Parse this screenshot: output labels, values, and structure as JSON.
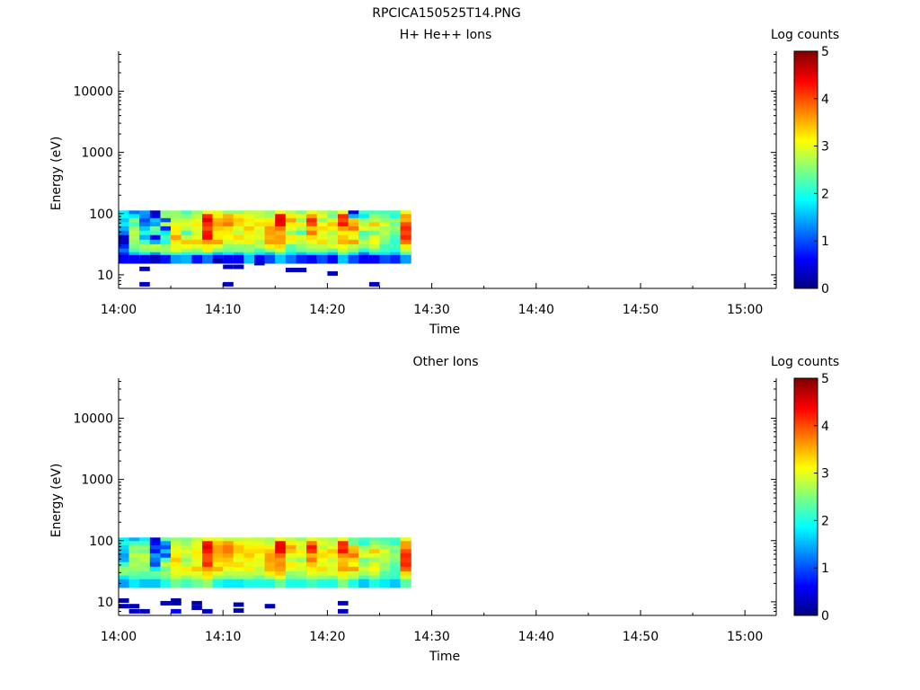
{
  "figure_title": "RPCICA150525T14.PNG",
  "chart_data": [
    {
      "type": "heatmap",
      "title": "H+ He++ Ions",
      "xlabel": "Time",
      "ylabel": "Energy (eV)",
      "y_scale": "log",
      "xlim": [
        "14:00",
        "15:03"
      ],
      "ylim": [
        6,
        45000
      ],
      "x_ticks": [
        "14:00",
        "14:10",
        "14:20",
        "14:30",
        "14:40",
        "14:50",
        "15:00"
      ],
      "y_ticks": [
        "10",
        "100",
        "1000",
        "10000"
      ],
      "colorbar": {
        "label": "Log counts",
        "range": [
          0,
          5
        ],
        "ticks": [
          "0",
          "1",
          "2",
          "3",
          "4",
          "5"
        ],
        "colormap": "jet"
      },
      "time_bins": [
        "14:00",
        "14:01",
        "14:02",
        "14:03",
        "14:04",
        "14:05",
        "14:06",
        "14:07",
        "14:08",
        "14:09",
        "14:10",
        "14:11",
        "14:12",
        "14:13",
        "14:14",
        "14:15",
        "14:16",
        "14:17",
        "14:18",
        "14:19",
        "14:20",
        "14:21",
        "14:22",
        "14:23",
        "14:24",
        "14:25",
        "14:26",
        "14:27"
      ],
      "energy_bins": [
        96,
        84,
        72,
        62,
        53,
        45,
        38,
        32,
        27,
        23,
        20,
        18
      ],
      "log_counts": [
        [
          1.8,
          1.9,
          1.6,
          1.8,
          1.5,
          1.2,
          0.4,
          0.3,
          0.8,
          1.2,
          0.8,
          0.6
        ],
        [
          1.2,
          1.8,
          2.5,
          2.2,
          2.6,
          2.8,
          2.7,
          2.6,
          2.5,
          2.2,
          1.6,
          0.6
        ],
        [
          1.4,
          1.3,
          1.0,
          1.2,
          1.6,
          2.0,
          1.5,
          2.2,
          2.7,
          2.5,
          1.8,
          0.5
        ],
        [
          0.3,
          0.5,
          1.6,
          1.4,
          2.4,
          2.2,
          0.5,
          1.5,
          2.8,
          2.6,
          1.4,
          0.3
        ],
        [
          2.5,
          2.6,
          1.0,
          2.8,
          0.8,
          1.8,
          2.2,
          2.0,
          2.6,
          2.6,
          2.2,
          0.7
        ],
        [
          2.6,
          2.6,
          2.8,
          3.0,
          3.2,
          3.2,
          3.6,
          3.2,
          3.0,
          3.0,
          2.2,
          1.4
        ],
        [
          2.2,
          2.5,
          2.8,
          3.0,
          2.8,
          2.2,
          2.8,
          3.4,
          3.1,
          2.7,
          2.0,
          1.5
        ],
        [
          2.6,
          2.8,
          3.0,
          3.2,
          3.0,
          2.9,
          3.0,
          3.4,
          3.0,
          2.6,
          2.1,
          0.7
        ],
        [
          3.0,
          4.2,
          4.5,
          4.2,
          4.0,
          4.3,
          4.4,
          3.6,
          3.2,
          3.2,
          2.0,
          1.2
        ],
        [
          3.0,
          3.2,
          3.5,
          3.6,
          3.4,
          3.2,
          3.2,
          3.6,
          3.0,
          2.5,
          1.6,
          0.7
        ],
        [
          2.6,
          3.5,
          3.6,
          3.8,
          3.3,
          3.2,
          3.1,
          2.9,
          2.6,
          2.4,
          1.8,
          0.6
        ],
        [
          2.6,
          3.2,
          3.4,
          3.3,
          3.0,
          2.8,
          3.3,
          3.0,
          2.6,
          2.5,
          1.6,
          0.6
        ],
        [
          2.8,
          3.0,
          3.2,
          3.0,
          3.4,
          3.2,
          3.0,
          3.2,
          2.6,
          2.6,
          2.0,
          1.6
        ],
        [
          2.8,
          2.8,
          3.1,
          3.3,
          3.0,
          2.9,
          3.0,
          2.7,
          2.8,
          2.2,
          1.8,
          0.6
        ],
        [
          2.6,
          2.7,
          3.2,
          3.3,
          3.6,
          3.6,
          3.5,
          3.6,
          3.2,
          2.6,
          1.6,
          1.0
        ],
        [
          3.0,
          4.4,
          4.5,
          4.4,
          3.8,
          3.5,
          3.6,
          3.6,
          3.3,
          2.9,
          2.2,
          1.6
        ],
        [
          2.8,
          3.2,
          3.6,
          3.2,
          3.0,
          2.6,
          3.2,
          3.0,
          2.3,
          2.2,
          1.8,
          1.2
        ],
        [
          2.5,
          3.0,
          2.6,
          3.2,
          2.8,
          2.2,
          3.0,
          2.8,
          2.6,
          2.4,
          1.6,
          0.8
        ],
        [
          3.0,
          3.6,
          4.2,
          4.0,
          3.4,
          3.8,
          3.3,
          3.0,
          2.8,
          2.5,
          1.8,
          0.6
        ],
        [
          2.8,
          3.0,
          2.6,
          3.1,
          3.3,
          3.0,
          3.0,
          3.3,
          2.8,
          2.6,
          1.8,
          1.0
        ],
        [
          2.6,
          2.4,
          3.0,
          3.4,
          3.2,
          2.7,
          2.9,
          2.8,
          3.0,
          2.3,
          1.6,
          0.6
        ],
        [
          3.0,
          4.2,
          4.0,
          4.3,
          3.6,
          3.2,
          3.4,
          3.5,
          3.1,
          2.8,
          2.4,
          1.6
        ],
        [
          0.4,
          1.5,
          3.4,
          3.5,
          3.8,
          3.2,
          3.0,
          3.6,
          2.8,
          2.6,
          1.8,
          1.0
        ],
        [
          2.2,
          1.8,
          2.6,
          2.8,
          3.0,
          2.2,
          2.4,
          2.8,
          2.6,
          2.0,
          1.2,
          0.6
        ],
        [
          2.2,
          2.6,
          2.8,
          3.4,
          2.9,
          2.4,
          3.0,
          3.1,
          2.9,
          2.4,
          1.8,
          0.6
        ],
        [
          2.2,
          2.4,
          2.6,
          3.0,
          2.7,
          2.8,
          2.6,
          2.5,
          2.2,
          2.2,
          1.8,
          1.0
        ],
        [
          2.2,
          2.0,
          2.6,
          2.4,
          2.6,
          2.4,
          2.2,
          2.1,
          2.2,
          2.0,
          1.6,
          0.8
        ],
        [
          3.0,
          3.6,
          3.5,
          4.0,
          4.2,
          4.0,
          4.2,
          3.8,
          3.2,
          2.8,
          2.3,
          1.4
        ]
      ],
      "sparse_points": [
        {
          "time": "14:02",
          "energy": 12.5,
          "log_count": 0.3
        },
        {
          "time": "14:02",
          "energy": 7,
          "log_count": 0.3
        },
        {
          "time": "14:09",
          "energy": 17,
          "log_count": 0.2
        },
        {
          "time": "14:10",
          "energy": 13.5,
          "log_count": 0.3
        },
        {
          "time": "14:11",
          "energy": 13.5,
          "log_count": 0.3
        },
        {
          "time": "14:10",
          "energy": 7,
          "log_count": 0.3
        },
        {
          "time": "14:13",
          "energy": 15.5,
          "log_count": 0.3
        },
        {
          "time": "14:16",
          "energy": 12,
          "log_count": 0.3
        },
        {
          "time": "14:17",
          "energy": 12,
          "log_count": 0.3
        },
        {
          "time": "14:20",
          "energy": 10.5,
          "log_count": 0.3
        },
        {
          "time": "14:24",
          "energy": 7,
          "log_count": 0.3
        }
      ]
    },
    {
      "type": "heatmap",
      "title": "Other Ions",
      "xlabel": "Time",
      "ylabel": "Energy (eV)",
      "y_scale": "log",
      "xlim": [
        "14:00",
        "15:03"
      ],
      "ylim": [
        6,
        45000
      ],
      "x_ticks": [
        "14:00",
        "14:10",
        "14:20",
        "14:30",
        "14:40",
        "14:50",
        "15:00"
      ],
      "y_ticks": [
        "10",
        "100",
        "1000",
        "10000"
      ],
      "colorbar": {
        "label": "Log counts",
        "range": [
          0,
          5
        ],
        "ticks": [
          "0",
          "1",
          "2",
          "3",
          "4",
          "5"
        ],
        "colormap": "jet"
      },
      "time_bins": [
        "14:00",
        "14:01",
        "14:02",
        "14:03",
        "14:04",
        "14:05",
        "14:06",
        "14:07",
        "14:08",
        "14:09",
        "14:10",
        "14:11",
        "14:12",
        "14:13",
        "14:14",
        "14:15",
        "14:16",
        "14:17",
        "14:18",
        "14:19",
        "14:20",
        "14:21",
        "14:22",
        "14:23",
        "14:24",
        "14:25",
        "14:26",
        "14:27"
      ],
      "energy_bins": [
        96,
        84,
        72,
        62,
        53,
        45,
        38,
        32,
        27,
        23,
        20
      ],
      "log_counts": [
        [
          1.8,
          2.0,
          1.7,
          1.6,
          1.4,
          1.5,
          2.2,
          2.6,
          2.5,
          1.8,
          1.4
        ],
        [
          1.5,
          2.2,
          2.6,
          2.5,
          2.8,
          2.6,
          2.7,
          2.6,
          2.4,
          2.2,
          1.8
        ],
        [
          1.8,
          2.2,
          2.6,
          2.4,
          2.8,
          2.8,
          2.6,
          2.6,
          2.3,
          2.2,
          1.6
        ],
        [
          0.4,
          0.6,
          1.0,
          0.7,
          1.4,
          1.2,
          1.0,
          1.8,
          2.4,
          2.2,
          1.6
        ],
        [
          2.4,
          1.4,
          1.0,
          1.6,
          1.0,
          2.2,
          2.8,
          2.4,
          2.6,
          2.4,
          2.0
        ],
        [
          2.6,
          2.8,
          3.0,
          3.0,
          3.2,
          3.4,
          3.2,
          3.0,
          3.0,
          2.8,
          2.4
        ],
        [
          2.5,
          2.6,
          2.8,
          3.0,
          2.8,
          2.6,
          2.8,
          3.2,
          3.0,
          2.6,
          2.2
        ],
        [
          2.8,
          3.0,
          3.0,
          3.2,
          3.2,
          3.0,
          3.0,
          3.4,
          3.0,
          2.8,
          2.4
        ],
        [
          3.0,
          4.3,
          4.5,
          4.3,
          4.0,
          4.0,
          4.2,
          3.6,
          3.3,
          3.2,
          2.6
        ],
        [
          3.0,
          3.4,
          3.6,
          3.6,
          3.5,
          3.4,
          3.2,
          3.5,
          3.0,
          2.6,
          2.0
        ],
        [
          2.8,
          3.6,
          3.8,
          3.8,
          3.6,
          3.4,
          3.3,
          3.0,
          2.8,
          2.5,
          1.8
        ],
        [
          2.8,
          3.2,
          3.4,
          3.4,
          3.2,
          3.0,
          3.3,
          3.1,
          2.8,
          2.6,
          1.8
        ],
        [
          2.9,
          3.0,
          3.2,
          3.3,
          3.4,
          3.2,
          3.0,
          3.2,
          2.8,
          2.6,
          2.0
        ],
        [
          2.8,
          3.0,
          3.2,
          3.3,
          3.1,
          3.0,
          3.0,
          2.8,
          2.8,
          2.4,
          2.0
        ],
        [
          2.7,
          2.8,
          3.2,
          3.4,
          3.6,
          3.6,
          3.5,
          3.5,
          3.2,
          2.7,
          2.0
        ],
        [
          3.0,
          4.4,
          4.5,
          4.4,
          3.9,
          3.6,
          3.7,
          3.6,
          3.4,
          3.0,
          2.4
        ],
        [
          2.8,
          3.2,
          3.6,
          3.4,
          3.0,
          2.8,
          3.2,
          3.0,
          2.6,
          2.4,
          2.0
        ],
        [
          2.6,
          3.0,
          2.9,
          3.2,
          3.0,
          2.6,
          3.0,
          2.9,
          2.7,
          2.5,
          2.0
        ],
        [
          3.0,
          3.8,
          4.3,
          4.1,
          3.5,
          3.8,
          3.4,
          3.2,
          3.0,
          2.7,
          2.2
        ],
        [
          2.8,
          3.0,
          2.8,
          3.2,
          3.3,
          3.1,
          3.0,
          3.3,
          2.9,
          2.6,
          2.0
        ],
        [
          2.7,
          2.8,
          3.0,
          3.4,
          3.2,
          2.8,
          3.0,
          2.9,
          3.0,
          2.5,
          2.0
        ],
        [
          3.0,
          4.2,
          4.1,
          4.3,
          3.7,
          3.4,
          3.5,
          3.6,
          3.2,
          2.9,
          2.5
        ],
        [
          2.4,
          2.4,
          3.4,
          3.5,
          3.8,
          3.3,
          3.1,
          3.6,
          2.9,
          2.7,
          2.0
        ],
        [
          2.2,
          2.0,
          2.6,
          2.8,
          3.0,
          2.4,
          2.6,
          2.9,
          2.7,
          2.2,
          1.6
        ],
        [
          2.3,
          2.6,
          2.8,
          3.4,
          3.0,
          2.6,
          3.0,
          3.1,
          2.9,
          2.5,
          2.0
        ],
        [
          2.2,
          2.4,
          2.6,
          3.0,
          2.8,
          2.8,
          2.6,
          2.6,
          2.3,
          2.2,
          1.8
        ],
        [
          2.2,
          2.1,
          2.6,
          2.4,
          2.6,
          2.5,
          2.3,
          2.2,
          2.2,
          2.1,
          1.6
        ],
        [
          3.0,
          3.6,
          3.6,
          4.0,
          4.2,
          4.1,
          4.2,
          3.9,
          3.3,
          2.9,
          2.3
        ]
      ],
      "sparse_points": [
        {
          "time": "14:00",
          "energy": 10.5,
          "log_count": 0.2
        },
        {
          "time": "14:00",
          "energy": 8.5,
          "log_count": 0.3
        },
        {
          "time": "14:01",
          "energy": 8.5,
          "log_count": 0.3
        },
        {
          "time": "14:01",
          "energy": 7,
          "log_count": 0.3
        },
        {
          "time": "14:02",
          "energy": 7,
          "log_count": 0.3
        },
        {
          "time": "14:04",
          "energy": 9.5,
          "log_count": 0.4
        },
        {
          "time": "14:05",
          "energy": 10.5,
          "log_count": 0.2
        },
        {
          "time": "14:05",
          "energy": 9.5,
          "log_count": 0.2
        },
        {
          "time": "14:05",
          "energy": 7,
          "log_count": 0.6
        },
        {
          "time": "14:07",
          "energy": 9.5,
          "log_count": 0.2
        },
        {
          "time": "14:07",
          "energy": 8,
          "log_count": 0.3
        },
        {
          "time": "14:08",
          "energy": 7,
          "log_count": 0.3
        },
        {
          "time": "14:11",
          "energy": 9,
          "log_count": 0.2
        },
        {
          "time": "14:11",
          "energy": 7.2,
          "log_count": 0.2
        },
        {
          "time": "14:14",
          "energy": 8.5,
          "log_count": 0.3
        },
        {
          "time": "14:21",
          "energy": 9.5,
          "log_count": 0.4
        },
        {
          "time": "14:21",
          "energy": 7,
          "log_count": 0.3
        }
      ]
    }
  ]
}
